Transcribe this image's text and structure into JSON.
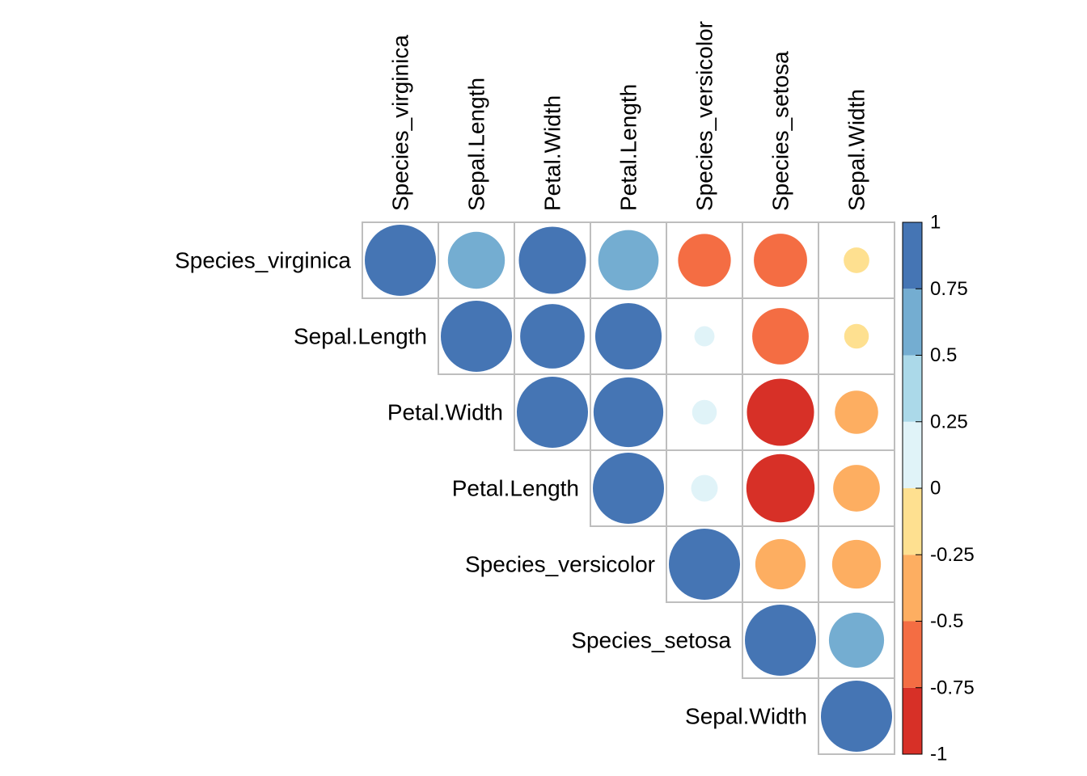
{
  "chart_data": {
    "type": "heatmap",
    "subtype": "correlation-matrix-upper-circle",
    "variables": [
      "Species_virginica",
      "Sepal.Length",
      "Petal.Width",
      "Petal.Length",
      "Species_versicolor",
      "Species_setosa",
      "Sepal.Width"
    ],
    "matrix": [
      [
        1.0,
        0.64,
        0.89,
        0.72,
        -0.55,
        -0.56,
        -0.13
      ],
      [
        0.64,
        1.0,
        0.82,
        0.87,
        0.08,
        -0.63,
        -0.12
      ],
      [
        0.89,
        0.82,
        1.0,
        0.96,
        0.12,
        -0.89,
        -0.37
      ],
      [
        0.72,
        0.87,
        0.96,
        1.0,
        0.14,
        -0.92,
        -0.43
      ],
      [
        -0.55,
        0.08,
        0.12,
        0.14,
        1.0,
        -0.5,
        -0.47
      ],
      [
        -0.56,
        -0.63,
        -0.89,
        -0.92,
        -0.5,
        1.0,
        0.6
      ],
      [
        -0.13,
        -0.12,
        -0.37,
        -0.43,
        -0.47,
        0.6,
        1.0
      ]
    ],
    "triangle": "upper",
    "show_diagonal": true,
    "method": "circle",
    "colorbar": {
      "range": [
        -1,
        1
      ],
      "ticks": [
        "1",
        "0.75",
        "0.5",
        "0.25",
        "0",
        "-0.25",
        "-0.5",
        "-0.75",
        "-1"
      ],
      "ticks_top_to_bottom": [
        1,
        0.75,
        0.5,
        0.25,
        0,
        -0.25,
        -0.5,
        -0.75,
        -1
      ],
      "bins": [
        {
          "from": -1.0,
          "to": -0.75,
          "color": "#D73027"
        },
        {
          "from": -0.75,
          "to": -0.5,
          "color": "#F46D43"
        },
        {
          "from": -0.5,
          "to": -0.25,
          "color": "#FDAE61"
        },
        {
          "from": -0.25,
          "to": 0.0,
          "color": "#FEE090"
        },
        {
          "from": 0.0,
          "to": 0.25,
          "color": "#E0F3F8"
        },
        {
          "from": 0.25,
          "to": 0.5,
          "color": "#ABD9E9"
        },
        {
          "from": 0.5,
          "to": 0.75,
          "color": "#74ADD1"
        },
        {
          "from": 0.75,
          "to": 1.0,
          "color": "#4575B4"
        }
      ]
    },
    "grid_color": "#BEBEBE"
  }
}
